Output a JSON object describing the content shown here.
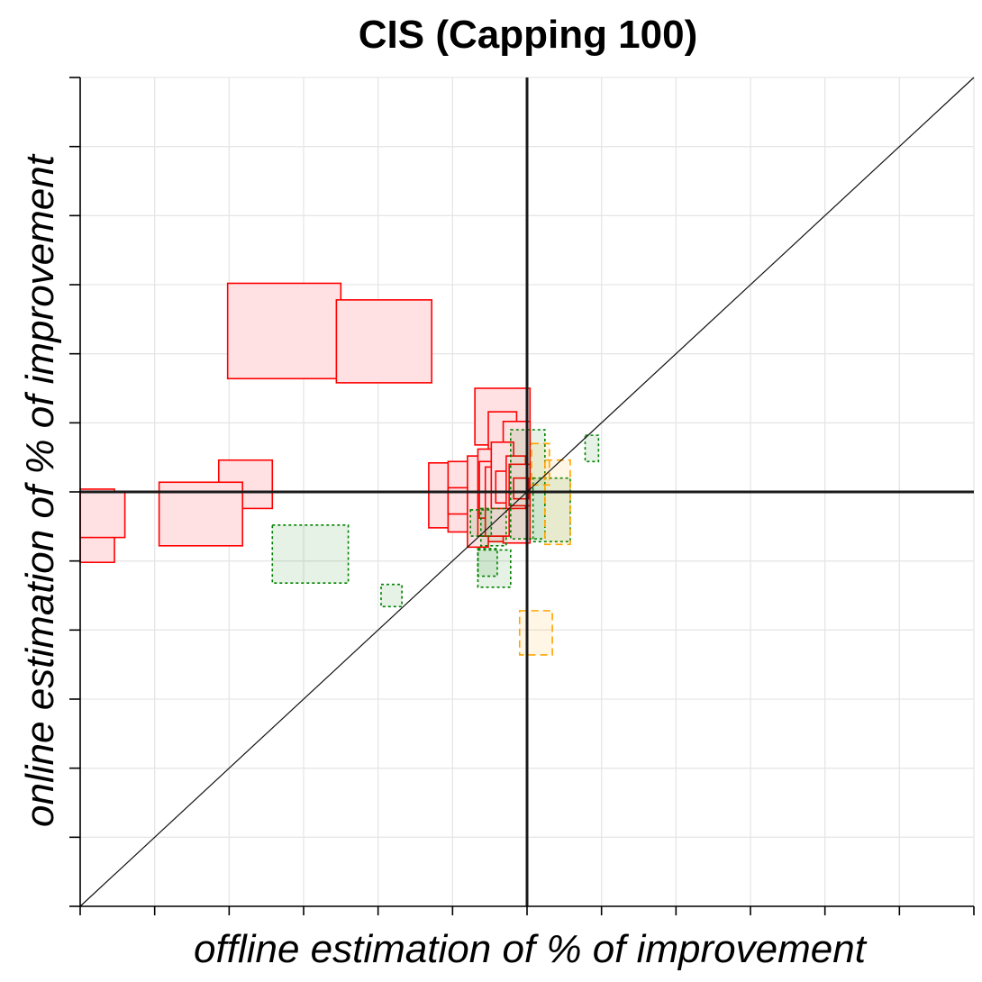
{
  "chart_data": {
    "type": "scatter",
    "title": "CIS (Capping 100)",
    "xlabel": "offline estimation of % of improvement",
    "ylabel": "online estimation of % of improvement",
    "xlim": [
      -30,
      30
    ],
    "ylim": [
      -30,
      30
    ],
    "grid": true,
    "tick_labels_shown": false,
    "x_ticks": [
      -30,
      -25,
      -20,
      -15,
      -10,
      -5,
      0,
      5,
      10,
      15,
      20,
      25,
      30
    ],
    "y_ticks": [
      -30,
      -25,
      -20,
      -15,
      -10,
      -5,
      0,
      5,
      10,
      15,
      20,
      25,
      30
    ],
    "reference_lines": [
      {
        "name": "zero-x",
        "x": 0
      },
      {
        "name": "zero-y",
        "y": 0
      },
      {
        "name": "identity",
        "from": [
          -30,
          -30
        ],
        "to": [
          30,
          30
        ]
      }
    ],
    "box_style_note": "each box spans the offline interval (x) and the online interval (y)",
    "series": [
      {
        "name": "red",
        "color": "#ff0000",
        "fill": "#ffe1e4",
        "dash": "none",
        "boxes": [
          {
            "x": [
              -20.1,
              -12.5
            ],
            "y": [
              8.2,
              15.1
            ]
          },
          {
            "x": [
              -12.8,
              -6.4
            ],
            "y": [
              7.9,
              13.9
            ]
          },
          {
            "x": [
              -3.5,
              0.2
            ],
            "y": [
              3.4,
              7.5
            ]
          },
          {
            "x": [
              -2.6,
              -0.7
            ],
            "y": [
              -3.6,
              5.8
            ]
          },
          {
            "x": [
              -1.6,
              0.2
            ],
            "y": [
              -3.7,
              5.1
            ]
          },
          {
            "x": [
              -20.7,
              -17.1
            ],
            "y": [
              -1.2,
              2.3
            ]
          },
          {
            "x": [
              -24.7,
              -19.1
            ],
            "y": [
              -3.9,
              0.7
            ]
          },
          {
            "x": [
              -30.0,
              -27.7
            ],
            "y": [
              -5.1,
              0.2
            ]
          },
          {
            "x": [
              -30.0,
              -27.0
            ],
            "y": [
              -3.3,
              0.0
            ]
          },
          {
            "x": [
              -6.6,
              -4.4
            ],
            "y": [
              -2.6,
              2.1
            ]
          },
          {
            "x": [
              -5.3,
              -3.6
            ],
            "y": [
              -2.9,
              2.2
            ]
          },
          {
            "x": [
              -5.3,
              -3.8
            ],
            "y": [
              -1.6,
              0.3
            ]
          },
          {
            "x": [
              -4.0,
              -2.6
            ],
            "y": [
              -4.0,
              2.6
            ]
          },
          {
            "x": [
              -3.3,
              -1.4
            ],
            "y": [
              -3.2,
              3.1
            ]
          },
          {
            "x": [
              -3.2,
              -1.7
            ],
            "y": [
              -1.9,
              2.2
            ]
          },
          {
            "x": [
              -2.8,
              -1.2
            ],
            "y": [
              -3.2,
              1.8
            ]
          },
          {
            "x": [
              -2.4,
              -0.9
            ],
            "y": [
              -1.2,
              3.6
            ]
          },
          {
            "x": [
              -2.1,
              -0.5
            ],
            "y": [
              -0.8,
              1.5
            ]
          },
          {
            "x": [
              -1.4,
              -0.1
            ],
            "y": [
              -1.2,
              2.6
            ]
          },
          {
            "x": [
              -1.2,
              0.2
            ],
            "y": [
              -1.0,
              2.0
            ]
          },
          {
            "x": [
              -0.9,
              0.1
            ],
            "y": [
              -0.5,
              1.0
            ]
          }
        ]
      },
      {
        "name": "green",
        "color": "#008000",
        "fill": "rgba(0,128,0,0.10)",
        "dash": "3,3",
        "boxes": [
          {
            "x": [
              -17.1,
              -12.0
            ],
            "y": [
              -6.6,
              -2.4
            ]
          },
          {
            "x": [
              -9.8,
              -8.4
            ],
            "y": [
              -8.3,
              -6.7
            ]
          },
          {
            "x": [
              -3.3,
              -1.1
            ],
            "y": [
              -6.9,
              -4.2
            ]
          },
          {
            "x": [
              -3.3,
              -2.0
            ],
            "y": [
              -6.1,
              -4.1
            ]
          },
          {
            "x": [
              -3.8,
              -2.4
            ],
            "y": [
              -3.2,
              -1.3
            ]
          },
          {
            "x": [
              -3.1,
              -1.4
            ],
            "y": [
              -3.9,
              -1.2
            ]
          },
          {
            "x": [
              -1.1,
              1.2
            ],
            "y": [
              -3.4,
              4.5
            ]
          },
          {
            "x": [
              0.4,
              2.9
            ],
            "y": [
              -3.6,
              1.0
            ]
          },
          {
            "x": [
              3.9,
              4.8
            ],
            "y": [
              2.2,
              4.1
            ]
          }
        ]
      },
      {
        "name": "orange",
        "color": "#ffa500",
        "fill": "rgba(255,165,0,0.10)",
        "dash": "8,5",
        "boxes": [
          {
            "x": [
              -0.5,
              1.7
            ],
            "y": [
              -11.8,
              -8.6
            ]
          },
          {
            "x": [
              1.2,
              2.9
            ],
            "y": [
              -3.8,
              2.3
            ]
          },
          {
            "x": [
              0.3,
              1.5
            ],
            "y": [
              0.5,
              3.5
            ]
          }
        ]
      }
    ]
  }
}
